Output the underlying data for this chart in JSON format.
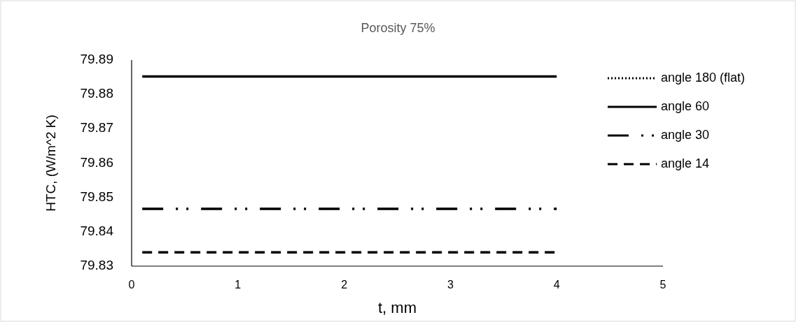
{
  "chart_data": {
    "type": "line",
    "title": "Porosity 75%",
    "xlabel": "t, mm",
    "ylabel": "HTC, (W/m^2 K)",
    "xlim": [
      0,
      5
    ],
    "xticks": [
      0,
      1,
      2,
      3,
      4,
      5
    ],
    "ylim": [
      79.83,
      79.89
    ],
    "yticks": [
      79.83,
      79.84,
      79.85,
      79.86,
      79.87,
      79.88,
      79.89
    ],
    "x": [
      0.1,
      4
    ],
    "grid": false,
    "legend": "right",
    "marker": "none",
    "series": [
      {
        "name": "angle 180 (flat)",
        "color": "#000000",
        "line_style": "dotted",
        "values": [
          null,
          null
        ]
      },
      {
        "name": "angle 60",
        "color": "#000000",
        "line_style": "solid",
        "values": [
          79.8852,
          79.8852
        ]
      },
      {
        "name": "angle 30",
        "color": "#000000",
        "line_style": "longdashdotdot",
        "values": [
          79.8467,
          79.8467
        ]
      },
      {
        "name": "angle 14",
        "color": "#000000",
        "line_style": "dashed",
        "values": [
          79.834,
          79.834
        ]
      }
    ]
  }
}
